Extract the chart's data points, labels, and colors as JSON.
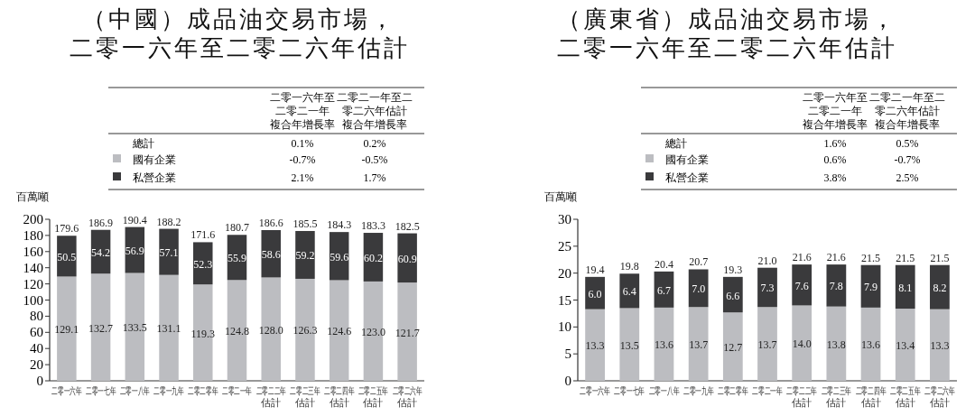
{
  "chart_data": [
    {
      "type": "bar",
      "stacked": true,
      "title": "（中國）成品油交易市場，二零一六年至二零二六年估計",
      "ylabel": "百萬噸",
      "categories": [
        "二零一六年",
        "二零一七年",
        "二零一八年",
        "二零一九年",
        "二零二零年",
        "二零二一年",
        "二零二二年估計",
        "二零二三年估計",
        "二零二四年估計",
        "二零二五年估計",
        "二零二六年估計"
      ],
      "series": [
        {
          "name": "國有企業",
          "color": "#bcbdc1",
          "values": [
            129.1,
            132.7,
            133.5,
            131.1,
            119.3,
            124.8,
            128.0,
            126.3,
            124.6,
            123.0,
            121.7
          ],
          "value_labels": [
            "129.1",
            "132.7",
            "133.5",
            "131.1",
            "119.3",
            "124.8",
            "128.0",
            "126.3",
            "124.6",
            "123.0",
            "121.7"
          ]
        },
        {
          "name": "私營企業",
          "color": "#3a3a3c",
          "values": [
            50.5,
            54.2,
            56.9,
            57.1,
            52.3,
            55.9,
            58.6,
            59.2,
            59.6,
            60.2,
            60.9
          ],
          "value_labels": [
            "50.5",
            "54.2",
            "56.9",
            "57.1",
            "52.3",
            "55.9",
            "58.6",
            "59.2",
            "59.6",
            "60.2",
            "60.9"
          ]
        }
      ],
      "totals": [
        "179.6",
        "186.9",
        "190.4",
        "188.2",
        "171.6",
        "180.7",
        "186.6",
        "185.5",
        "184.3",
        "183.3",
        "182.5"
      ],
      "ylim": [
        0,
        200
      ],
      "yticks": [
        0,
        20,
        40,
        60,
        80,
        100,
        120,
        140,
        160,
        180,
        200
      ],
      "legend": "top",
      "annotations": [
        "二零一六年至二零二一年",
        "複合年增長率",
        "二零二一年至二零二六年估計",
        "複合年增長率",
        "總計",
        "0.1%",
        "0.2%",
        "-0.7%",
        "-0.5%",
        "2.1%",
        "1.7%"
      ]
    },
    {
      "type": "bar",
      "stacked": true,
      "title": "（廣東省）成品油交易市場，二零一六年至二零二六年估計",
      "ylabel": "百萬噸",
      "categories": [
        "二零一六年",
        "二零一七年",
        "二零一八年",
        "二零一九年",
        "二零二零年",
        "二零二一年",
        "二零二二年估計",
        "二零二三年估計",
        "二零二四年估計",
        "二零二五年估計",
        "二零二六年估計"
      ],
      "series": [
        {
          "name": "國有企業",
          "color": "#bcbdc1",
          "values": [
            13.3,
            13.5,
            13.6,
            13.7,
            12.7,
            13.7,
            14.0,
            13.8,
            13.6,
            13.4,
            13.3
          ],
          "value_labels": [
            "13.3",
            "13.5",
            "13.6",
            "13.7",
            "12.7",
            "13.7",
            "14.0",
            "13.8",
            "13.6",
            "13.4",
            "13.3"
          ]
        },
        {
          "name": "私營企業",
          "color": "#3a3a3c",
          "values": [
            6.0,
            6.4,
            6.7,
            7.0,
            6.6,
            7.3,
            7.6,
            7.8,
            7.9,
            8.1,
            8.2
          ],
          "value_labels": [
            "6.0",
            "6.4",
            "6.7",
            "7.0",
            "6.6",
            "7.3",
            "7.6",
            "7.8",
            "7.9",
            "8.1",
            "8.2"
          ]
        }
      ],
      "totals": [
        "19.4",
        "19.8",
        "20.4",
        "20.7",
        "19.3",
        "21.0",
        "21.6",
        "21.6",
        "21.5",
        "21.5",
        "21.5"
      ],
      "ylim": [
        0,
        30
      ],
      "yticks": [
        0,
        5,
        10,
        15,
        20,
        25,
        30
      ],
      "legend": "top",
      "annotations": [
        "二零一六年至二零二一年",
        "複合年增長率",
        "二零二一年至二零二六年估計",
        "複合年增長率",
        "總計",
        "1.6%",
        "0.5%",
        "0.6%",
        "-0.7%",
        "3.8%",
        "2.5%"
      ]
    }
  ]
}
